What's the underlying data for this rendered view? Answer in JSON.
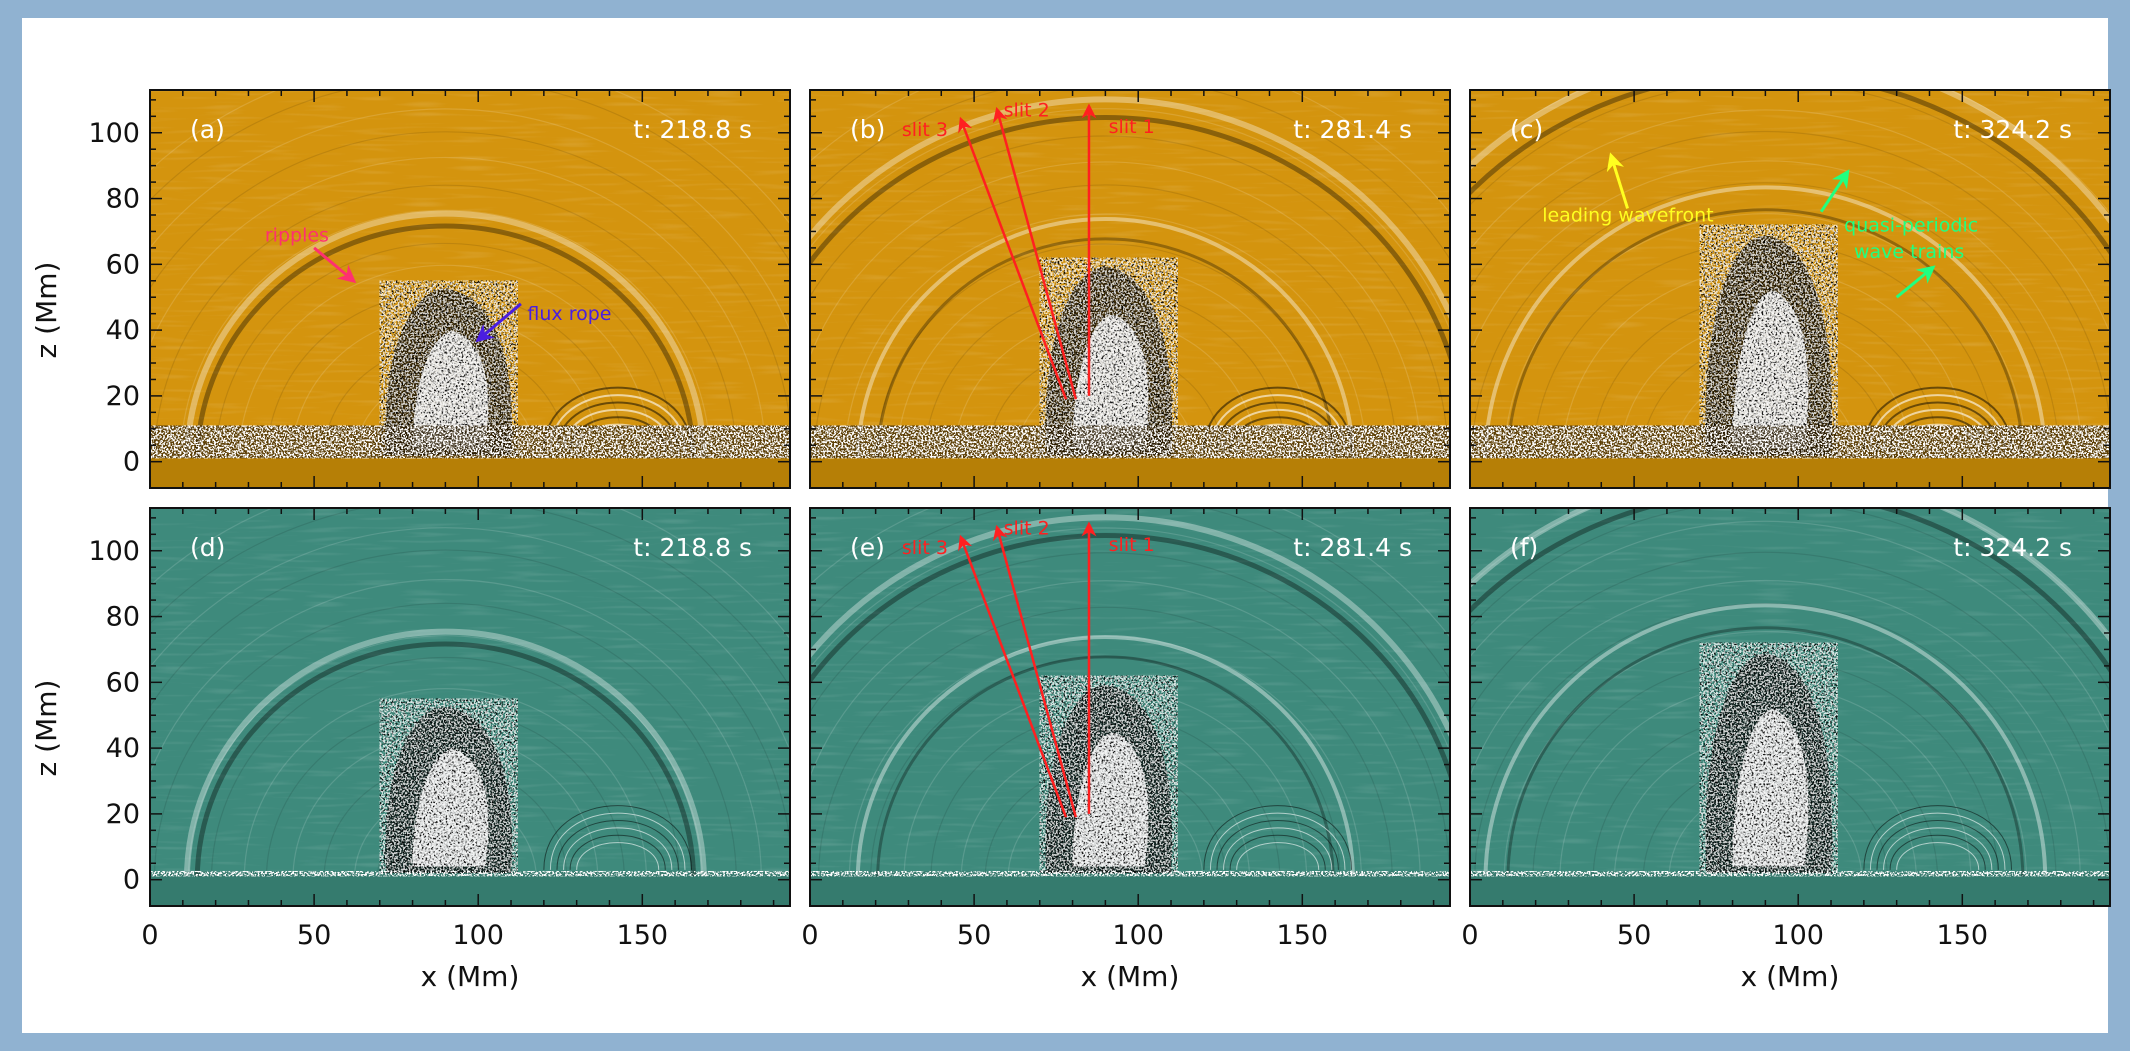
{
  "figure": {
    "xlabel": "x (Mm)",
    "zlabel": "z (Mm)",
    "x_ticks": [
      "0",
      "50",
      "100",
      "150"
    ],
    "z_ticks": [
      "0",
      "20",
      "40",
      "60",
      "80",
      "100"
    ],
    "x_range": [
      0,
      195
    ],
    "z_range": [
      -8,
      113
    ],
    "colors": {
      "frame": "#90b2d1",
      "aia_bg": "#d4940e",
      "aia_base": "#b67f06",
      "teal_bg": "#3e8a7c",
      "teal_base": "#357b6e"
    }
  },
  "panels": [
    {
      "label": "(a)",
      "time": "t: 218.8 s",
      "scheme": "aia",
      "annotations": [
        {
          "id": "ripples",
          "text": "ripples",
          "color": "#ff3070",
          "tx": 35,
          "tz": 67,
          "arrow": [
            [
              50,
              65
            ],
            [
              62,
              55
            ]
          ]
        },
        {
          "id": "flux-rope",
          "text": "flux rope",
          "color": "#4a1ee0",
          "tx": 115,
          "tz": 43,
          "arrow": [
            [
              113,
              48
            ],
            [
              100,
              37
            ]
          ]
        }
      ],
      "slits": []
    },
    {
      "label": "(b)",
      "time": "t: 281.4 s",
      "scheme": "aia",
      "annotations": [],
      "slits": [
        {
          "label": "slit 1",
          "from": [
            85,
            20
          ],
          "to": [
            85,
            108
          ],
          "tx": 91,
          "tz": 100
        },
        {
          "label": "slit 2",
          "from": [
            81,
            19
          ],
          "to": [
            57,
            107
          ],
          "tx": 59,
          "tz": 105
        },
        {
          "label": "slit 3",
          "from": [
            78,
            19
          ],
          "to": [
            46,
            104
          ],
          "tx": 28,
          "tz": 99
        }
      ]
    },
    {
      "label": "(c)",
      "time": "t: 324.2 s",
      "scheme": "aia",
      "annotations": [
        {
          "id": "leading-wavefront",
          "text": "leading wavefront",
          "color": "#ffff20",
          "tx": 22,
          "tz": 73,
          "arrow": [
            [
              48,
              77
            ],
            [
              43,
              93
            ]
          ]
        },
        {
          "id": "quasi-periodic-wave-trains",
          "text": "quasi-periodic",
          "text2": "wave trains",
          "color": "#20ff80",
          "tx": 114,
          "tz": 70,
          "tz2": 62,
          "arrows": [
            [
              [
                107,
                76
              ],
              [
                115,
                88
              ]
            ],
            [
              [
                130,
                50
              ],
              [
                141,
                59
              ]
            ]
          ]
        }
      ],
      "slits": []
    },
    {
      "label": "(d)",
      "time": "t: 218.8 s",
      "scheme": "teal",
      "annotations": [],
      "slits": []
    },
    {
      "label": "(e)",
      "time": "t: 281.4 s",
      "scheme": "teal",
      "annotations": [],
      "slits": [
        {
          "label": "slit 1",
          "from": [
            85,
            20
          ],
          "to": [
            85,
            108
          ],
          "tx": 91,
          "tz": 100
        },
        {
          "label": "slit 2",
          "from": [
            81,
            19
          ],
          "to": [
            57,
            107
          ],
          "tx": 59,
          "tz": 105
        },
        {
          "label": "slit 3",
          "from": [
            78,
            19
          ],
          "to": [
            46,
            104
          ],
          "tx": 28,
          "tz": 99
        }
      ]
    },
    {
      "label": "(f)",
      "time": "t: 324.2 s",
      "scheme": "teal",
      "annotations": [],
      "slits": []
    }
  ]
}
